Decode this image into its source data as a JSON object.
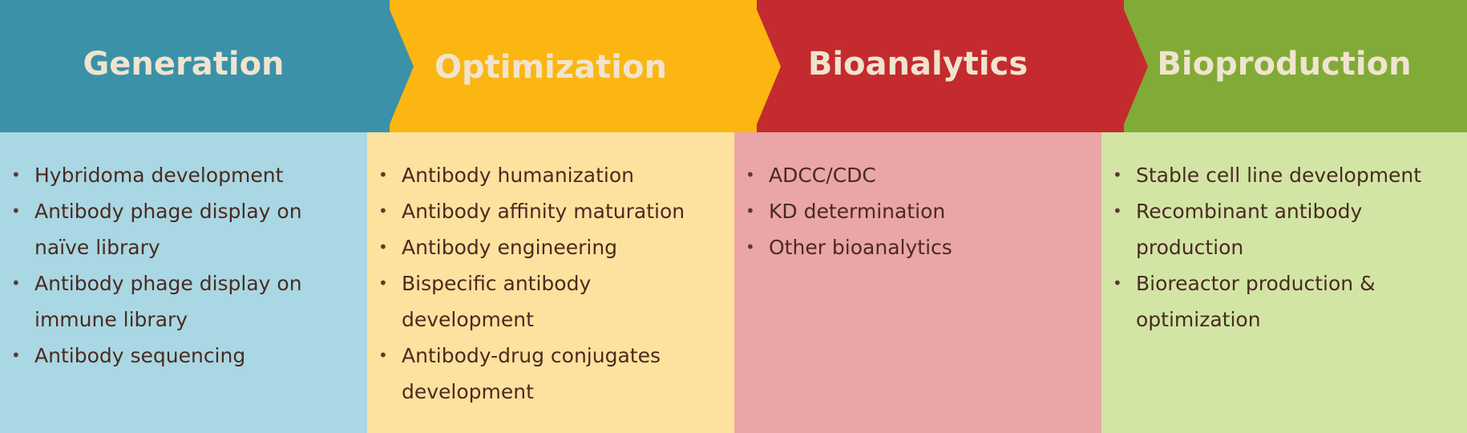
{
  "colors": {
    "generation_head": "#3a91a8",
    "generation_body": "#a9d7e3",
    "optimization_head": "#fbb612",
    "optimization_body": "#fde19e",
    "bioanalytics_head": "#c42b2e",
    "bioanalytics_body": "#eaa5a7",
    "bioproduction_head": "#81ab36",
    "bioproduction_body": "#d2e5a5",
    "title_text": "#f0e4cf",
    "item_text": "#4a2a20"
  },
  "stages": [
    {
      "title": "Generation",
      "items": [
        "Hybridoma development",
        "Antibody phage display on naïve library",
        "Antibody phage display on immune library",
        "Antibody sequencing"
      ]
    },
    {
      "title": "Optimization",
      "items": [
        "Antibody humanization",
        "Antibody affinity maturation",
        "Antibody engineering",
        "Bispecific antibody development",
        "Antibody-drug conjugates development"
      ]
    },
    {
      "title": "Bioanalytics",
      "items": [
        "ADCC/CDC",
        "KD determination",
        "Other bioanalytics"
      ]
    },
    {
      "title": "Bioproduction",
      "items": [
        "Stable cell line development",
        "Recombinant antibody production",
        "Bioreactor production & optimization"
      ]
    }
  ]
}
